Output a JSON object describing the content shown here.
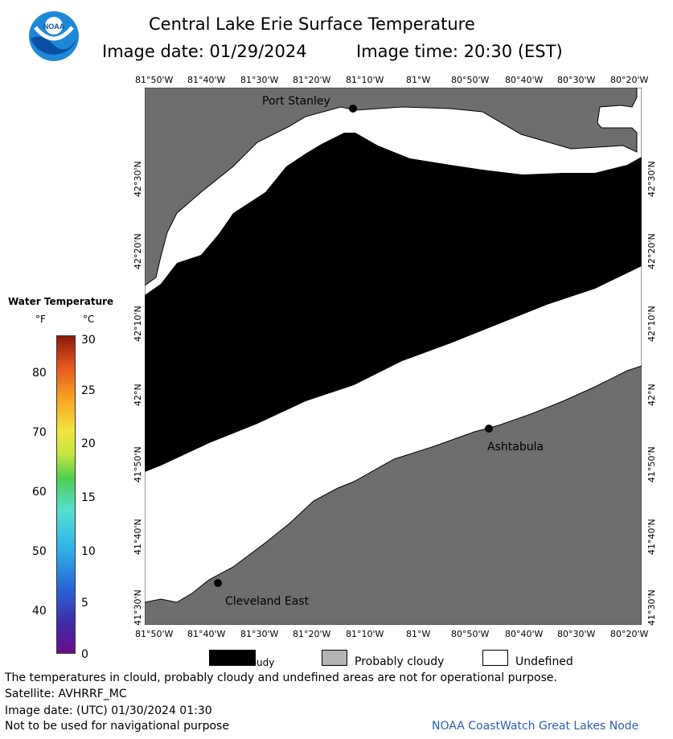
{
  "title": "Central Lake Erie Surface Temperature",
  "image_date": "Image date: 01/29/2024",
  "image_time": "Image time: 20:30 (EST)",
  "lon_labels": [
    "81°50'W",
    "81°40'W",
    "81°30'W",
    "81°20'W",
    "81°10'W",
    "81°W",
    "80°50'W",
    "80°40'W",
    "80°30'W",
    "80°20'W"
  ],
  "lat_labels": [
    "42°30'N",
    "42°20'N",
    "42°10'N",
    "42°N",
    "41°50'N",
    "41°40'N",
    "41°30'N"
  ],
  "places": {
    "port_stanley": "Port Stanley",
    "ashtabula": "Ashtabula",
    "cleveland_east": "Cleveland East"
  },
  "legend": {
    "title": "Water Temperature",
    "unit_f": "°F",
    "unit_c": "°C",
    "f_ticks": [
      "80",
      "70",
      "60",
      "50",
      "40"
    ],
    "c_ticks": [
      "30",
      "25",
      "20",
      "15",
      "10",
      "5",
      "0"
    ]
  },
  "categories": {
    "cloudy": "Cloudy",
    "probably_cloudy": "Probably cloudy",
    "undefined": "Undefined"
  },
  "footer": {
    "note": "The temperatures in clould, probably cloudy and undefined areas are not for operational purpose.",
    "satellite": "Satellite: AVHRRF_MC",
    "utc_date": "Image date: (UTC) 01/30/2024  01:30",
    "nav": "Not to be used for navigational purpose",
    "credit": "NOAA CoastWatch Great Lakes Node"
  },
  "colors": {
    "land": "#6e6e6e",
    "cloudy": "#000000",
    "probably_cloudy": "#b4b4b4",
    "undefined": "#ffffff"
  }
}
